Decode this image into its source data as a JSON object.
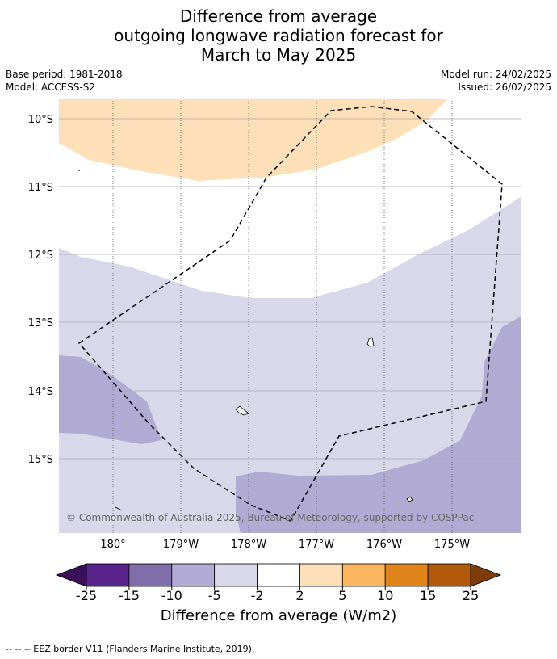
{
  "title": {
    "line1": "Difference from average",
    "line2": "outgoing longwave radiation forecast for",
    "line3": "March to May 2025"
  },
  "meta": {
    "base_period": "Base period: 1981-2018",
    "model": "Model: ACCESS-S2",
    "model_run": "Model run: 24/02/2025",
    "issued": "Issued: 26/02/2025"
  },
  "map": {
    "lat_labels": [
      "10°S",
      "11°S",
      "12°S",
      "13°S",
      "14°S",
      "15°S"
    ],
    "lon_labels": [
      "180°",
      "179°W",
      "178°W",
      "177°W",
      "176°W",
      "175°W"
    ],
    "copyright": "© Commonwealth of Australia 2025, Bureau of Meteorology, supported by COSPPac"
  },
  "colorbar": {
    "ticks": [
      "-25",
      "-15",
      "-10",
      "-5",
      "-2",
      "2",
      "5",
      "10",
      "15",
      "25"
    ],
    "colors": [
      "#3b0f5a",
      "#58248b",
      "#7f6eaa",
      "#b1abd3",
      "#d8d8ea",
      "#ffffff",
      "#fde0b7",
      "#fab55e",
      "#e08519",
      "#b35a0a",
      "#7e3c08"
    ],
    "title": "Difference from average (W/m2)"
  },
  "footer": "--  --  -- EEZ border V11 (Flanders Marine Institute, 2019)."
}
